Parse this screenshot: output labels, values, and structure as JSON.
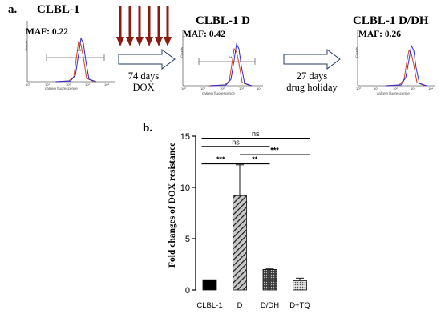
{
  "panel_a": {
    "label": "a.",
    "histograms": [
      {
        "title": "CLBL-1",
        "maf": "MAF: 0.22",
        "gate": "M1",
        "y_axis_label": "Counts",
        "x_axis_label": "calcein fluorescence",
        "ticks": [
          "10⁰",
          "10¹",
          "10²",
          "10³",
          "10⁴"
        ]
      },
      {
        "title": "CLBL-1 D",
        "maf": "MAF: 0.42",
        "gate": "M1",
        "y_axis_label": "Counts",
        "x_axis_label": "calcein fluorescence",
        "ticks": [
          "10⁰",
          "10¹",
          "10²",
          "10³",
          "10⁴"
        ]
      },
      {
        "title": "CLBL-1 D/DH",
        "maf": "MAF: 0.26",
        "gate": "M1",
        "y_axis_label": "Counts",
        "x_axis_label": "calcein fluorescence",
        "ticks": [
          "10⁰",
          "10¹",
          "10²",
          "10³",
          "10⁴"
        ]
      }
    ],
    "step1": {
      "line1": "74 days",
      "line2": "DOX"
    },
    "step2": {
      "line1": "27 days",
      "line2": "drug holiday"
    },
    "colors": {
      "dox_arrows": "#8b1a10",
      "outline_arrow": "#1f3864",
      "trace_blue": "#2b2bd6",
      "trace_red": "#d0442a"
    }
  },
  "panel_b": {
    "label": "b.",
    "chart_data": {
      "type": "bar",
      "categories": [
        "CLBL-1",
        "D",
        "D/DH",
        "D+TQ"
      ],
      "values": [
        1.0,
        9.2,
        2.0,
        0.9
      ],
      "errors": [
        0.0,
        3.0,
        0.05,
        0.25
      ],
      "ylabel": "Fold changes of DOX resistance",
      "xlabel": "",
      "ylim": [
        0,
        15
      ],
      "yticks": [
        0,
        5,
        10,
        15
      ],
      "grid": false,
      "bar_fills": [
        "solid-black",
        "diagonal-hatch",
        "dotted-dense",
        "dotted-light"
      ],
      "significance": [
        {
          "pair": [
            "CLBL-1",
            "D+TQ"
          ],
          "label": "ns"
        },
        {
          "pair": [
            "CLBL-1",
            "D/DH"
          ],
          "label": "ns"
        },
        {
          "pair": [
            "D",
            "D+TQ"
          ],
          "label": "***"
        },
        {
          "pair": [
            "CLBL-1",
            "D"
          ],
          "label": "***"
        },
        {
          "pair": [
            "D",
            "D/DH"
          ],
          "label": "**"
        }
      ]
    }
  }
}
